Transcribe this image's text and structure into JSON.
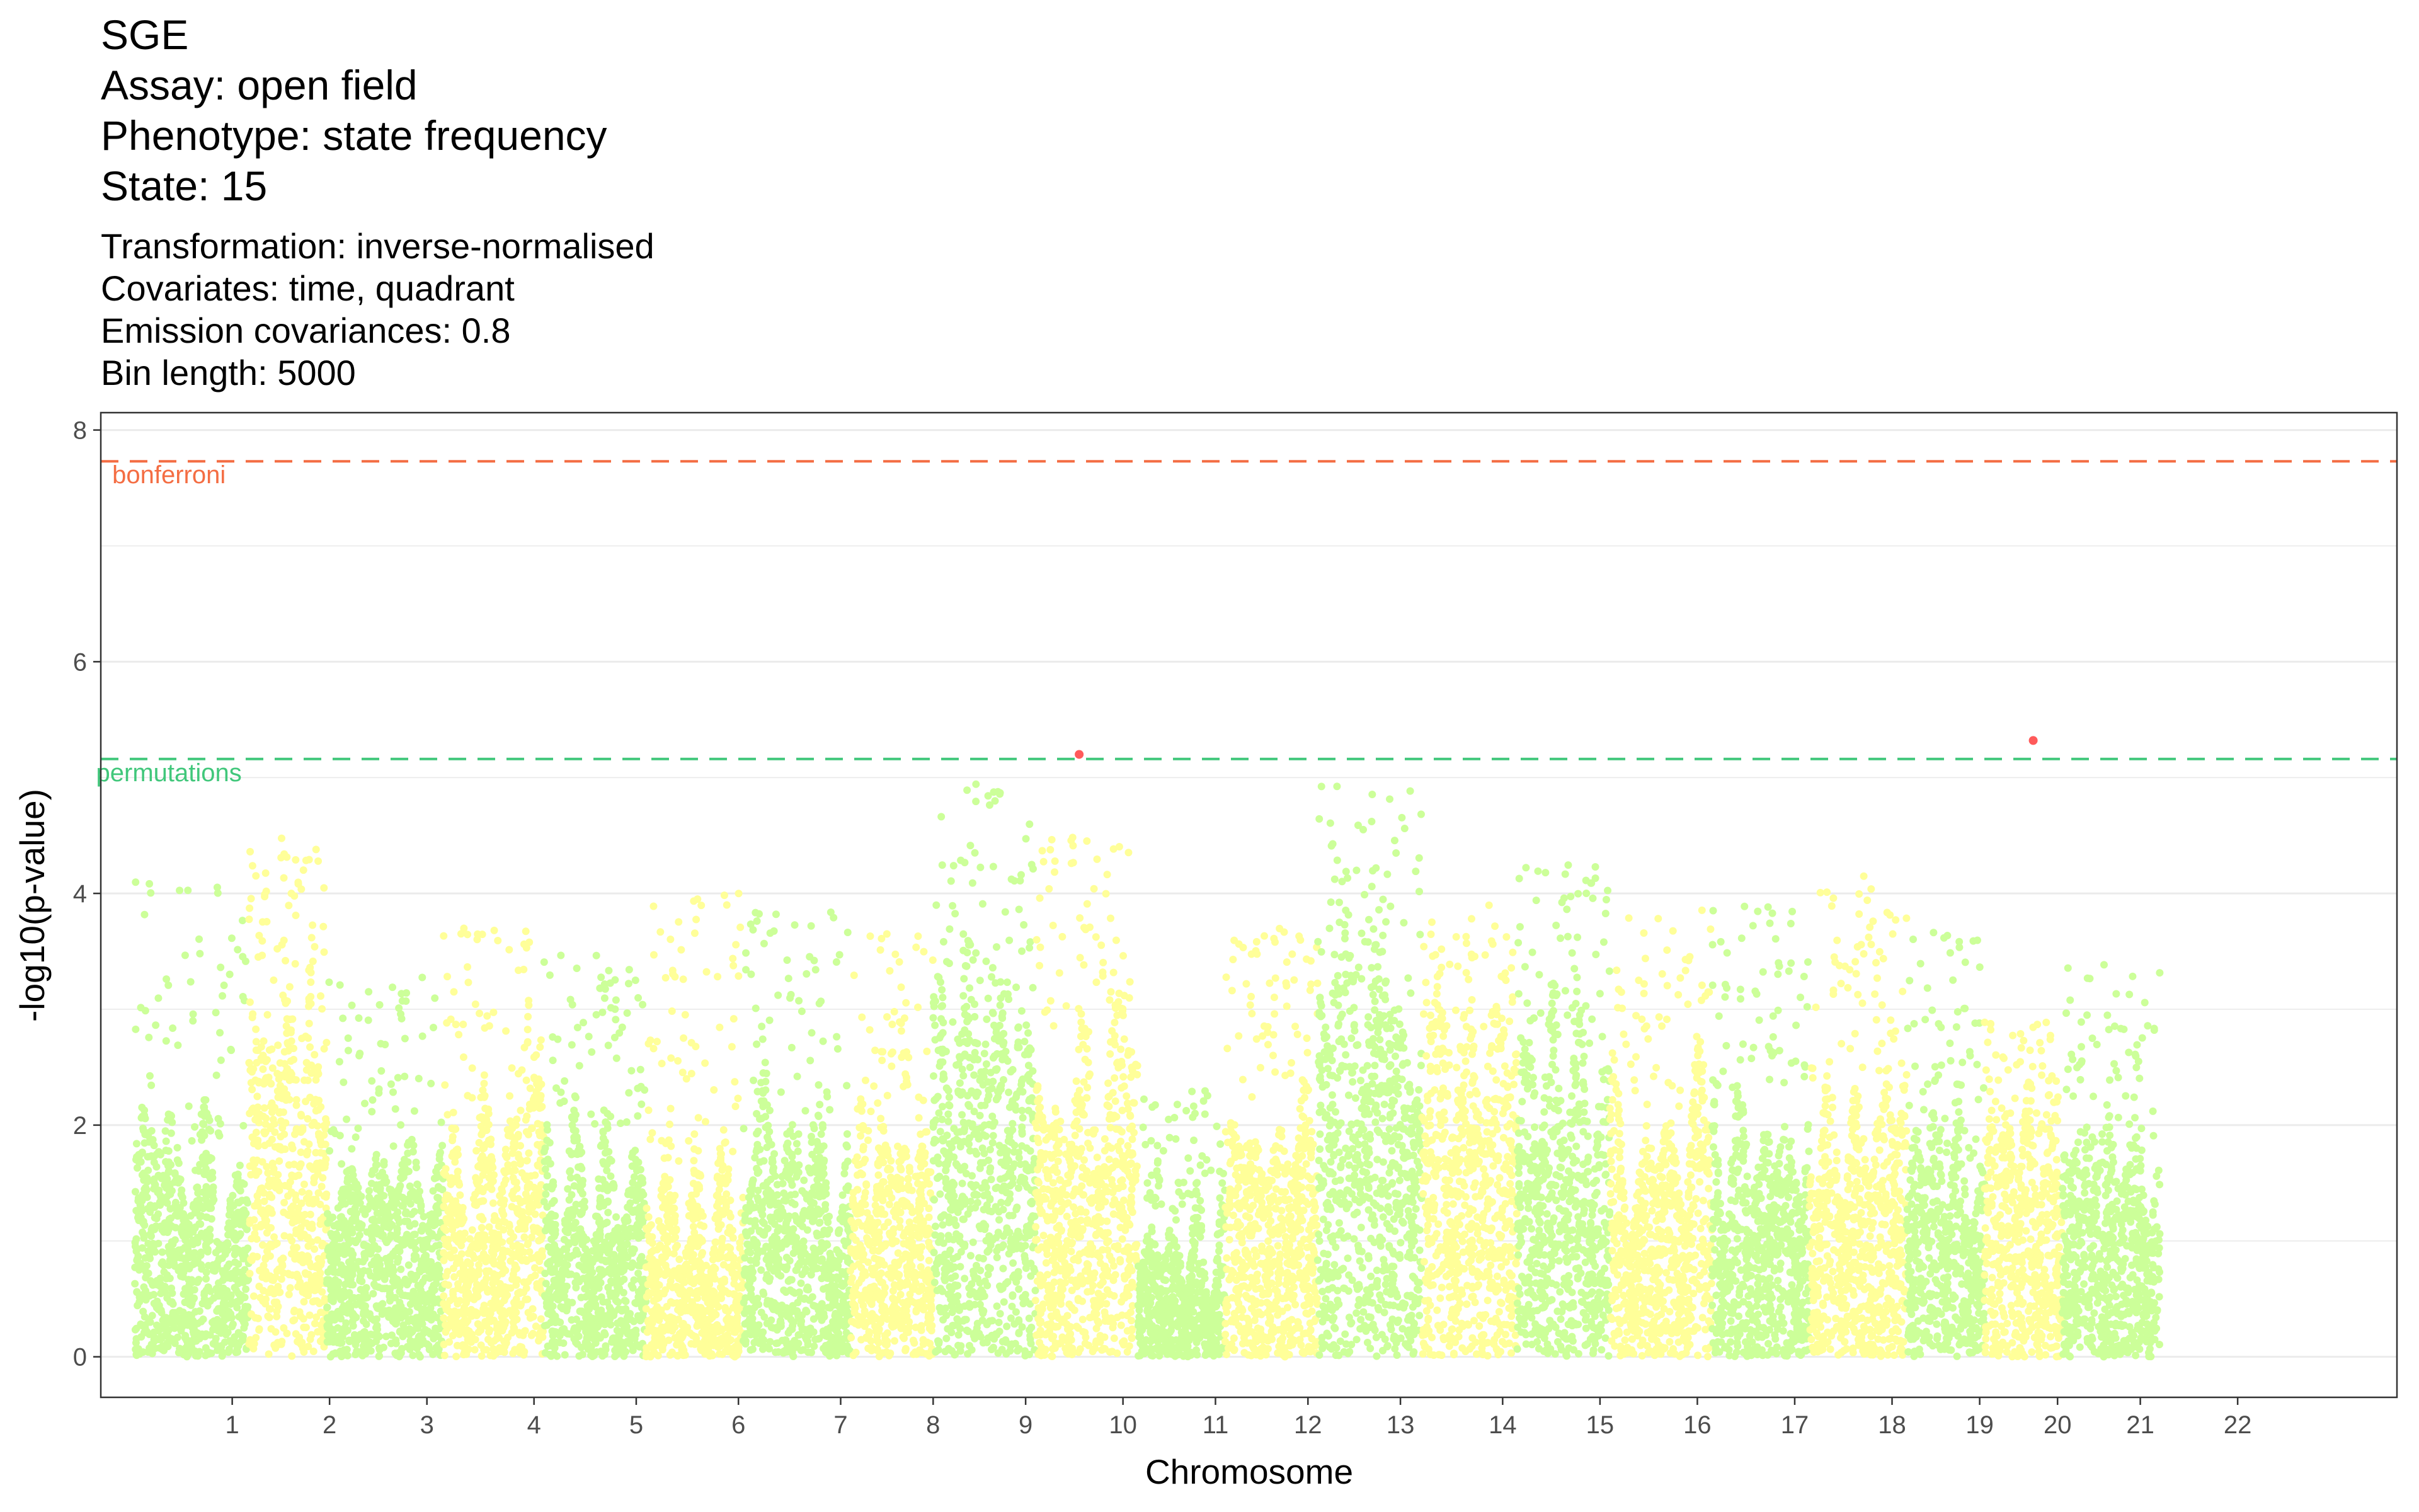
{
  "chart_data": {
    "type": "scatter",
    "title": [
      "SGE",
      "Assay: open field",
      "Phenotype: state frequency",
      "State: 15"
    ],
    "subtitle": [
      "Transformation: inverse-normalised",
      "Covariates: time, quadrant",
      "Emission covariances: 0.8",
      "Bin length: 5000"
    ],
    "xlabel": "Chromosome",
    "ylabel": "-log10(p-value)",
    "ylim": [
      -0.35,
      8.15
    ],
    "yticks": [
      0,
      2,
      4,
      6,
      8
    ],
    "grid": true,
    "x_categories": [
      "1",
      "2",
      "3",
      "4",
      "5",
      "6",
      "7",
      "8",
      "9",
      "10",
      "11",
      "12",
      "13",
      "14",
      "15",
      "16",
      "17",
      "18",
      "19",
      "20",
      "21",
      "22"
    ],
    "colors": {
      "green": "#ccff99",
      "yellow": "#ffff99",
      "significant": "#ff5a5a",
      "bonferroni_line": "#f46d43",
      "permutation_line": "#41c77b",
      "panel_border": "#333333",
      "grid": "#ebebeb"
    },
    "chromosomes": [
      {
        "label": "1",
        "tick": 1.0,
        "start": 0.0,
        "end": 1.17,
        "color": "green",
        "base": 2.2,
        "peak": 4.1
      },
      {
        "label": "2",
        "tick": 2.0,
        "start": 1.17,
        "end": 1.97,
        "color": "yellow",
        "base": 3.3,
        "peak": 4.5
      },
      {
        "label": "3",
        "tick": 3.0,
        "start": 1.97,
        "end": 3.17,
        "color": "green",
        "base": 1.9,
        "peak": 3.3
      },
      {
        "label": "4",
        "tick": 4.1,
        "start": 3.17,
        "end": 4.2,
        "color": "yellow",
        "base": 2.6,
        "peak": 3.7
      },
      {
        "label": "5",
        "tick": 5.15,
        "start": 4.2,
        "end": 5.25,
        "color": "green",
        "base": 2.4,
        "peak": 3.5
      },
      {
        "label": "6",
        "tick": 6.2,
        "start": 5.25,
        "end": 6.25,
        "color": "yellow",
        "base": 2.1,
        "peak": 4.0
      },
      {
        "label": "7",
        "tick": 7.25,
        "start": 6.25,
        "end": 7.35,
        "color": "green",
        "base": 2.3,
        "peak": 4.0
      },
      {
        "label": "8",
        "tick": 8.2,
        "start": 7.35,
        "end": 8.2,
        "color": "yellow",
        "base": 2.0,
        "peak": 3.7
      },
      {
        "label": "9",
        "tick": 9.15,
        "start": 8.2,
        "end": 9.25,
        "color": "green",
        "base": 3.6,
        "peak": 5.0
      },
      {
        "label": "10",
        "tick": 10.15,
        "start": 9.25,
        "end": 10.3,
        "color": "yellow",
        "base": 3.5,
        "peak": 4.5
      },
      {
        "label": "11",
        "tick": 11.1,
        "start": 10.3,
        "end": 11.2,
        "color": "green",
        "base": 1.6,
        "peak": 2.3
      },
      {
        "label": "12",
        "tick": 12.05,
        "start": 11.2,
        "end": 12.15,
        "color": "yellow",
        "base": 2.8,
        "peak": 3.7
      },
      {
        "label": "13",
        "tick": 13.0,
        "start": 12.15,
        "end": 13.22,
        "color": "green",
        "base": 3.9,
        "peak": 4.95
      },
      {
        "label": "14",
        "tick": 14.05,
        "start": 13.22,
        "end": 14.2,
        "color": "yellow",
        "base": 3.1,
        "peak": 3.9
      },
      {
        "label": "15",
        "tick": 15.05,
        "start": 14.2,
        "end": 15.15,
        "color": "green",
        "base": 3.0,
        "peak": 4.3
      },
      {
        "label": "16",
        "tick": 16.05,
        "start": 15.15,
        "end": 16.2,
        "color": "yellow",
        "base": 2.7,
        "peak": 3.9
      },
      {
        "label": "17",
        "tick": 17.05,
        "start": 16.2,
        "end": 17.2,
        "color": "green",
        "base": 2.9,
        "peak": 3.9
      },
      {
        "label": "18",
        "tick": 18.05,
        "start": 17.2,
        "end": 18.2,
        "color": "yellow",
        "base": 3.0,
        "peak": 4.2
      },
      {
        "label": "19",
        "tick": 18.95,
        "start": 18.2,
        "end": 19.0,
        "color": "green",
        "base": 2.1,
        "peak": 3.7
      },
      {
        "label": "20",
        "tick": 19.75,
        "start": 19.0,
        "end": 19.8,
        "color": "yellow",
        "base": 2.2,
        "peak": 2.9
      },
      {
        "label": "21",
        "tick": 20.6,
        "start": 19.8,
        "end": 20.8,
        "color": "green",
        "base": 2.2,
        "peak": 3.4
      },
      {
        "label": "22",
        "tick": 21.6,
        "start": 20.8,
        "end": 20.8,
        "color": "green",
        "base": 0,
        "peak": 0
      }
    ],
    "significant_points": [
      {
        "x": 9.7,
        "y": 5.2
      },
      {
        "x": 19.5,
        "y": 5.32
      }
    ],
    "reference_lines": [
      {
        "name": "bonferroni",
        "y": 7.73,
        "color": "bonferroni_line"
      },
      {
        "name": "permutations",
        "y": 5.16,
        "color": "permutation_line"
      }
    ]
  }
}
